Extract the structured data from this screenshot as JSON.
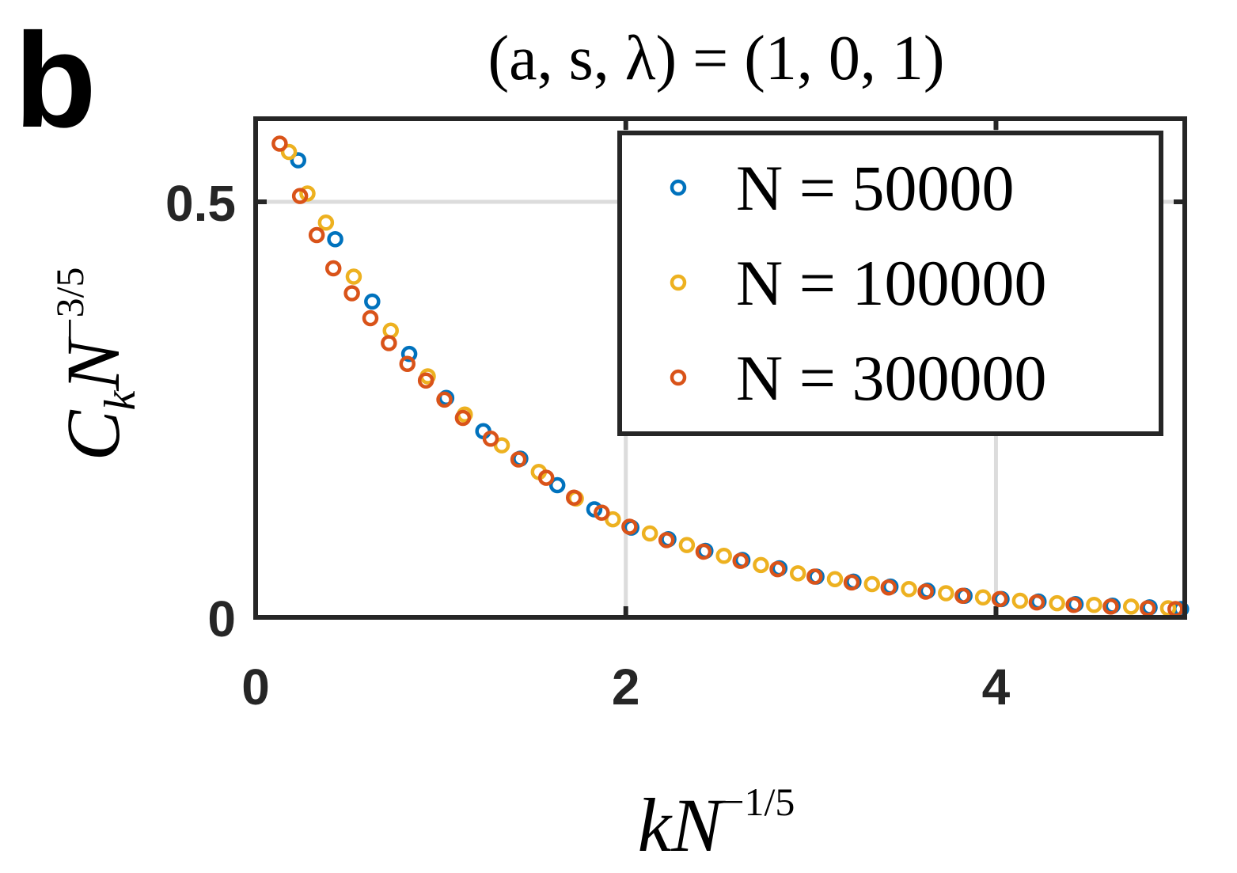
{
  "panel_label": "b",
  "chart_data": {
    "type": "scatter",
    "title": "(a, s, λ) = (1, 0, 1)",
    "xlabel": {
      "main": "kN",
      "sup": "−1/5"
    },
    "ylabel": {
      "main": "C",
      "sub": "k",
      "main2": "N",
      "sup": "−3/5"
    },
    "xlim": [
      0,
      5.02
    ],
    "ylim": [
      0,
      0.6
    ],
    "xticks": [
      0,
      2,
      4
    ],
    "yticks": [
      0,
      0.5
    ],
    "grid": true,
    "legend": "upper right",
    "series": [
      {
        "name": "N = 50000",
        "color": "#0072BD",
        "x": [
          0.23,
          0.43,
          0.63,
          0.83,
          1.03,
          1.23,
          1.43,
          1.63,
          1.83,
          2.03,
          2.23,
          2.43,
          2.63,
          2.83,
          3.03,
          3.23,
          3.43,
          3.63,
          3.83,
          4.03,
          4.23,
          4.43,
          4.63,
          4.83,
          5.0
        ],
        "values": [
          0.55,
          0.455,
          0.38,
          0.317,
          0.264,
          0.224,
          0.191,
          0.159,
          0.13,
          0.108,
          0.094,
          0.08,
          0.069,
          0.059,
          0.049,
          0.043,
          0.037,
          0.032,
          0.026,
          0.022,
          0.019,
          0.016,
          0.014,
          0.012,
          0.01
        ]
      },
      {
        "name": "N = 100000",
        "color": "#EDB120",
        "x": [
          0.18,
          0.28,
          0.38,
          0.53,
          0.73,
          0.93,
          1.13,
          1.33,
          1.53,
          1.73,
          1.93,
          2.13,
          2.33,
          2.53,
          2.73,
          2.93,
          3.13,
          3.33,
          3.53,
          3.73,
          3.93,
          4.13,
          4.33,
          4.53,
          4.73,
          4.93
        ],
        "values": [
          0.56,
          0.51,
          0.475,
          0.41,
          0.345,
          0.29,
          0.244,
          0.207,
          0.175,
          0.143,
          0.118,
          0.101,
          0.087,
          0.074,
          0.063,
          0.053,
          0.046,
          0.04,
          0.034,
          0.029,
          0.024,
          0.02,
          0.017,
          0.015,
          0.013,
          0.011
        ]
      },
      {
        "name": "N = 300000",
        "color": "#D95319",
        "x": [
          0.13,
          0.24,
          0.33,
          0.42,
          0.52,
          0.62,
          0.72,
          0.82,
          0.92,
          1.02,
          1.12,
          1.27,
          1.42,
          1.57,
          1.72,
          1.87,
          2.02,
          2.22,
          2.42,
          2.62,
          2.82,
          3.02,
          3.22,
          3.42,
          3.62,
          3.82,
          4.02,
          4.22,
          4.42,
          4.62,
          4.82,
          4.97
        ],
        "values": [
          0.57,
          0.507,
          0.46,
          0.42,
          0.39,
          0.36,
          0.33,
          0.305,
          0.285,
          0.262,
          0.24,
          0.215,
          0.19,
          0.168,
          0.144,
          0.126,
          0.109,
          0.093,
          0.079,
          0.068,
          0.058,
          0.049,
          0.042,
          0.036,
          0.031,
          0.026,
          0.022,
          0.018,
          0.015,
          0.013,
          0.011,
          0.01
        ]
      }
    ]
  }
}
